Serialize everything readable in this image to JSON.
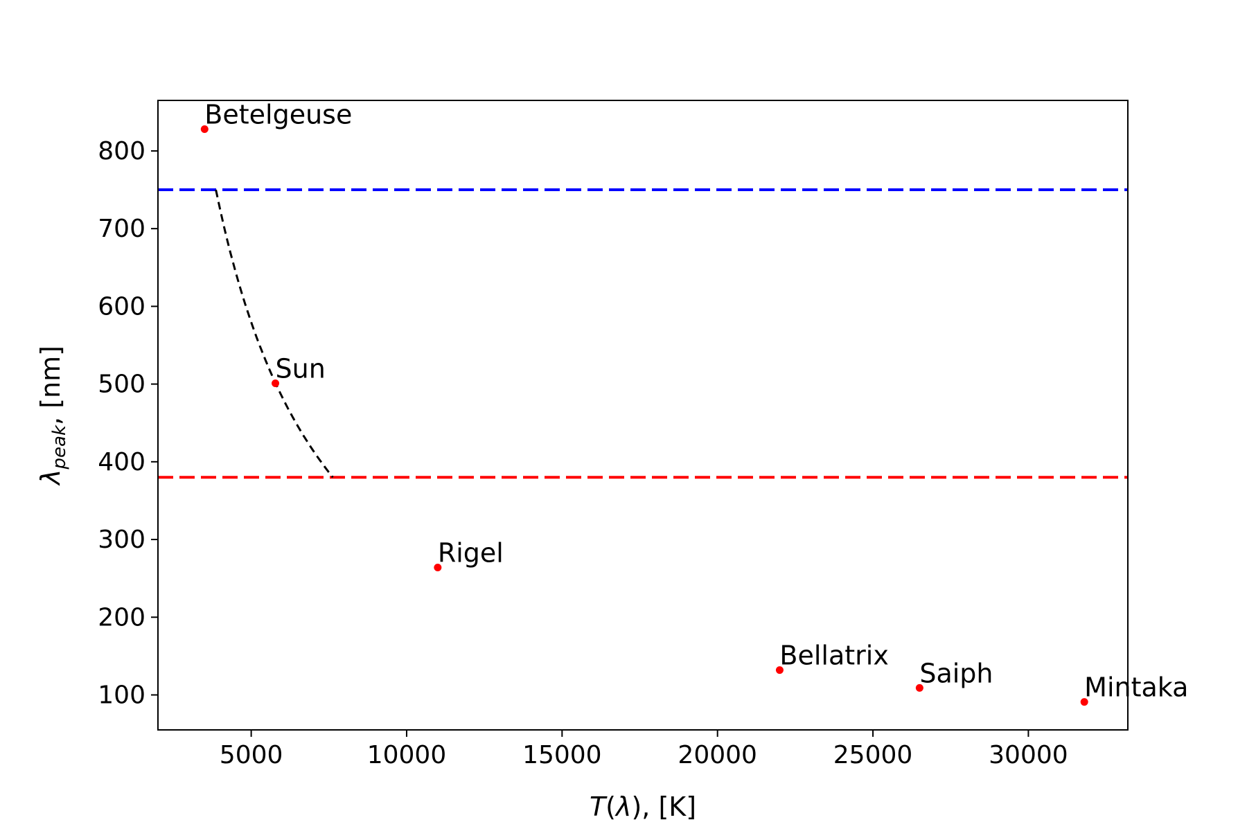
{
  "chart_data": {
    "type": "scatter",
    "title": "",
    "xlabel": "T(λ), [K]",
    "ylabel": "λpeak, [nm]",
    "xlim": [
      2000,
      33200
    ],
    "ylim": [
      55,
      865
    ],
    "xticks": [
      5000,
      10000,
      15000,
      20000,
      25000,
      30000
    ],
    "yticks": [
      100,
      200,
      300,
      400,
      500,
      600,
      700,
      800
    ],
    "grid": false,
    "point_color": "#ff0000",
    "points": [
      {
        "label": "Betelgeuse",
        "x": 3500,
        "y": 828
      },
      {
        "label": "Sun",
        "x": 5778,
        "y": 501
      },
      {
        "label": "Rigel",
        "x": 11000,
        "y": 264
      },
      {
        "label": "Bellatrix",
        "x": 22000,
        "y": 132
      },
      {
        "label": "Saiph",
        "x": 26500,
        "y": 109
      },
      {
        "label": "Mintaka",
        "x": 31800,
        "y": 91
      }
    ],
    "hlines": [
      {
        "y": 750,
        "color": "#0000ff",
        "style": "dashed"
      },
      {
        "y": 380,
        "color": "#ff0000",
        "style": "dashed"
      }
    ],
    "curve": {
      "relation": "λ = 2.898e6 / T",
      "x_range": [
        3864,
        7626
      ],
      "color": "#000000",
      "style": "dashed"
    }
  }
}
